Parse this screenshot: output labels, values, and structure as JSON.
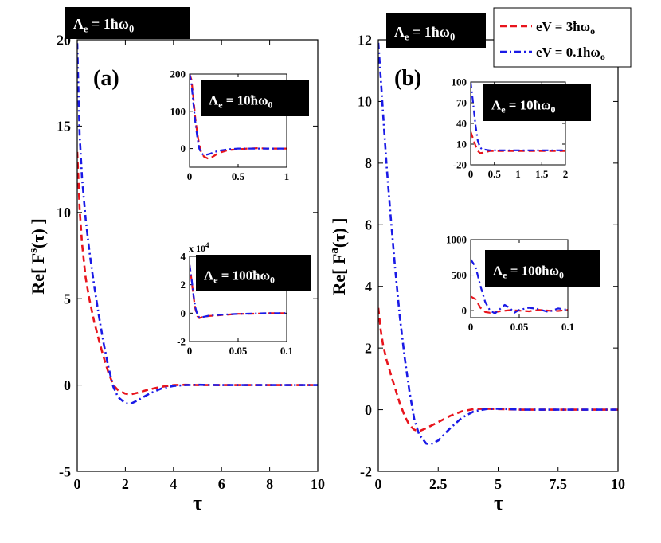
{
  "colors": {
    "red": "#e8141c",
    "blue": "#1a1ae6",
    "black": "#000000"
  },
  "legend": [
    {
      "label": "eV = 3ħω",
      "sub": "o",
      "color": "#e8141c",
      "dash": "dash"
    },
    {
      "label": "eV = 0.1ħω",
      "sub": "o",
      "color": "#1a1ae6",
      "dash": "dashdot"
    }
  ],
  "chart_data": [
    {
      "type": "line",
      "panel_label": "(a)",
      "box_label": {
        "main": "Λ",
        "sub": "e",
        "rest": " = 1ħω",
        "sub2": "0"
      },
      "ylabel": "Re[ F^s(τ) ]",
      "ylabel_parts": {
        "pre": "Re[ F",
        "sup": "s",
        "post": "(τ) ]"
      },
      "xlabel": "τ",
      "xlim": [
        0,
        10
      ],
      "ylim": [
        -5,
        20
      ],
      "xticks": [
        "0",
        "2",
        "4",
        "6",
        "8",
        "10"
      ],
      "yticks": [
        "-5",
        "0",
        "5",
        "10",
        "15",
        "20"
      ],
      "series": [
        {
          "name": "eV = 3ħωo",
          "x": [
            0,
            0.1,
            0.2,
            0.35,
            0.5,
            0.7,
            0.9,
            1.1,
            1.3,
            1.5,
            1.7,
            2.0,
            2.2,
            2.5,
            3.0,
            3.5,
            4.0,
            4.5,
            5.0,
            6.0,
            7.0,
            8.0,
            9.0,
            10.0
          ],
          "y": [
            13.5,
            10.2,
            8.2,
            6.2,
            5.0,
            3.7,
            2.6,
            1.6,
            0.7,
            0.0,
            -0.3,
            -0.5,
            -0.55,
            -0.45,
            -0.25,
            -0.1,
            0.0,
            0.02,
            0.0,
            0.0,
            0.0,
            0.0,
            0.0,
            0.0
          ]
        },
        {
          "name": "eV = 0.1ħωo",
          "x": [
            0,
            0.05,
            0.1,
            0.2,
            0.35,
            0.5,
            0.7,
            0.9,
            1.1,
            1.3,
            1.5,
            1.7,
            2.0,
            2.2,
            2.5,
            3.0,
            3.5,
            4.0,
            4.5,
            5.0,
            6.0,
            7.0,
            8.0,
            9.0,
            10.0
          ],
          "y": [
            19.8,
            17.0,
            14.5,
            12.0,
            9.6,
            7.8,
            5.8,
            4.0,
            2.4,
            1.0,
            -0.1,
            -0.7,
            -1.05,
            -1.1,
            -0.9,
            -0.5,
            -0.2,
            -0.05,
            0.0,
            0.02,
            0.0,
            0.0,
            0.0,
            0.0,
            0.0
          ]
        }
      ],
      "insets": [
        {
          "box_label": {
            "main": "Λ",
            "sub": "e",
            "rest": " = 10ħω",
            "sub2": "0"
          },
          "xlim": [
            0,
            1
          ],
          "ylim": [
            -50,
            200
          ],
          "xticks": [
            "0",
            "0.5",
            "1"
          ],
          "yticks": [
            "0",
            "100",
            "200"
          ],
          "series": [
            {
              "name": "eV = 3ħωo",
              "x": [
                0,
                0.02,
                0.04,
                0.06,
                0.08,
                0.1,
                0.12,
                0.15,
                0.2,
                0.25,
                0.3,
                0.4,
                0.5,
                0.6,
                0.7,
                0.8,
                0.9,
                1.0
              ],
              "y": [
                200,
                185,
                135,
                80,
                40,
                10,
                -10,
                -22,
                -28,
                -20,
                -12,
                -4,
                -2,
                0,
                1,
                0,
                0,
                0
              ]
            },
            {
              "name": "eV = 0.1ħωo",
              "x": [
                0,
                0.02,
                0.04,
                0.06,
                0.08,
                0.1,
                0.12,
                0.15,
                0.2,
                0.25,
                0.3,
                0.4,
                0.5,
                0.6,
                0.7,
                0.8,
                0.9,
                1.0
              ],
              "y": [
                200,
                175,
                120,
                70,
                30,
                0,
                -12,
                -18,
                -15,
                -10,
                -6,
                -2,
                0,
                0,
                0,
                0,
                0,
                0
              ]
            }
          ]
        },
        {
          "box_label": {
            "main": "Λ",
            "sub": "e",
            "rest": " = 100ħω",
            "sub2": "0"
          },
          "multiplier": "x 10^4",
          "multiplier_parts": {
            "pre": "x 10",
            "sup": "4"
          },
          "xlim": [
            0,
            0.1
          ],
          "ylim": [
            -2,
            4
          ],
          "xticks": [
            "0",
            "0.05",
            "0.1"
          ],
          "yticks": [
            "-2",
            "0",
            "2",
            "4"
          ],
          "series": [
            {
              "name": "eV = 3ħωo",
              "x": [
                0,
                0.002,
                0.004,
                0.006,
                0.008,
                0.01,
                0.012,
                0.015,
                0.02,
                0.03,
                0.04,
                0.05,
                0.06,
                0.07,
                0.08,
                0.09,
                0.1
              ],
              "y": [
                3.4,
                2.4,
                1.2,
                0.3,
                -0.2,
                -0.35,
                -0.3,
                -0.25,
                -0.2,
                -0.15,
                -0.1,
                -0.05,
                -0.05,
                -0.03,
                0,
                0,
                0
              ]
            },
            {
              "name": "eV = 0.1ħωo",
              "x": [
                0,
                0.002,
                0.004,
                0.006,
                0.008,
                0.01,
                0.012,
                0.015,
                0.02,
                0.03,
                0.04,
                0.05,
                0.06,
                0.07,
                0.08,
                0.09,
                0.1
              ],
              "y": [
                3.4,
                2.5,
                1.3,
                0.4,
                -0.1,
                -0.3,
                -0.3,
                -0.25,
                -0.18,
                -0.12,
                -0.08,
                -0.05,
                -0.04,
                -0.02,
                0,
                0,
                0
              ]
            }
          ]
        }
      ]
    },
    {
      "type": "line",
      "panel_label": "(b)",
      "box_label": {
        "main": "Λ",
        "sub": "e",
        "rest": " = 1ħω",
        "sub2": "0"
      },
      "ylabel": "Re[ F^a(τ) ]",
      "ylabel_parts": {
        "pre": "Re[ F",
        "sup": "a",
        "post": "(τ) ]"
      },
      "xlabel": "τ",
      "xlim": [
        0,
        10
      ],
      "ylim": [
        -2,
        12
      ],
      "xticks": [
        "0",
        "2.5",
        "5",
        "7.5",
        "10"
      ],
      "yticks": [
        "-2",
        "0",
        "2",
        "4",
        "6",
        "8",
        "10",
        "12"
      ],
      "series": [
        {
          "name": "eV = 3ħωo",
          "x": [
            0,
            0.1,
            0.2,
            0.35,
            0.5,
            0.7,
            0.9,
            1.1,
            1.3,
            1.5,
            1.7,
            2.0,
            2.5,
            3.0,
            3.5,
            4.0,
            4.5,
            5.0,
            6.0,
            7.0,
            8.0,
            9.0,
            10.0
          ],
          "y": [
            3.3,
            2.6,
            2.1,
            1.6,
            1.2,
            0.7,
            0.2,
            -0.2,
            -0.5,
            -0.65,
            -0.7,
            -0.6,
            -0.4,
            -0.2,
            -0.05,
            0.02,
            0.03,
            0.02,
            0.0,
            0.0,
            0.0,
            0.0,
            0.0
          ]
        },
        {
          "name": "eV = 0.1ħωo",
          "x": [
            0,
            0.1,
            0.2,
            0.35,
            0.5,
            0.7,
            0.9,
            1.1,
            1.3,
            1.5,
            1.7,
            2.0,
            2.2,
            2.5,
            3.0,
            3.5,
            4.0,
            4.5,
            5.0,
            6.0,
            7.0,
            8.0,
            9.0,
            10.0
          ],
          "y": [
            11.9,
            10.8,
            9.6,
            7.9,
            6.4,
            4.6,
            3.0,
            1.7,
            0.6,
            -0.3,
            -0.8,
            -1.1,
            -1.12,
            -1.0,
            -0.6,
            -0.25,
            -0.05,
            0.02,
            0.03,
            0.0,
            0.0,
            0.0,
            0.0,
            0.0
          ]
        }
      ],
      "insets": [
        {
          "box_label": {
            "main": "Λ",
            "sub": "e",
            "rest": " = 10ħω",
            "sub2": "0"
          },
          "xlim": [
            0,
            2
          ],
          "ylim": [
            -20,
            100
          ],
          "xticks": [
            "0",
            "0.5",
            "1",
            "1.5",
            "2"
          ],
          "yticks": [
            "-20",
            "10",
            "40",
            "70",
            "100"
          ],
          "series": [
            {
              "name": "eV = 3ħωo",
              "x": [
                0,
                0.05,
                0.1,
                0.15,
                0.2,
                0.3,
                0.4,
                0.5,
                0.7,
                1.0,
                1.5,
                2.0
              ],
              "y": [
                28,
                18,
                8,
                0,
                -3,
                -2,
                0,
                0,
                0,
                0,
                0,
                0
              ]
            },
            {
              "name": "eV = 0.1ħωo",
              "x": [
                0,
                0.05,
                0.1,
                0.15,
                0.2,
                0.25,
                0.3,
                0.4,
                0.5,
                0.7,
                1.0,
                1.5,
                2.0
              ],
              "y": [
                100,
                70,
                38,
                15,
                5,
                2,
                2,
                1,
                1,
                1,
                1,
                1,
                1
              ]
            }
          ]
        },
        {
          "box_label": {
            "main": "Λ",
            "sub": "e",
            "rest": " = 100ħω",
            "sub2": "0"
          },
          "xlim": [
            0,
            0.1
          ],
          "ylim": [
            -100,
            1000
          ],
          "xticks": [
            "0",
            "0.05",
            "0.1"
          ],
          "yticks": [
            "0",
            "500",
            "1000"
          ],
          "series": [
            {
              "name": "eV = 3ħωo",
              "x": [
                0,
                0.005,
                0.01,
                0.015,
                0.02,
                0.03,
                0.04,
                0.05,
                0.06,
                0.07,
                0.08,
                0.09,
                0.1
              ],
              "y": [
                200,
                160,
                40,
                -20,
                -30,
                -10,
                5,
                0,
                -10,
                10,
                0,
                -5,
                10
              ]
            },
            {
              "name": "eV = 0.1ħωo",
              "x": [
                0,
                0.005,
                0.01,
                0.015,
                0.02,
                0.025,
                0.03,
                0.035,
                0.04,
                0.045,
                0.05,
                0.06,
                0.07,
                0.08,
                0.09,
                0.1
              ],
              "y": [
                720,
                620,
                350,
                120,
                0,
                -40,
                20,
                80,
                40,
                -30,
                10,
                40,
                20,
                -20,
                30,
                10
              ]
            }
          ]
        }
      ]
    }
  ]
}
